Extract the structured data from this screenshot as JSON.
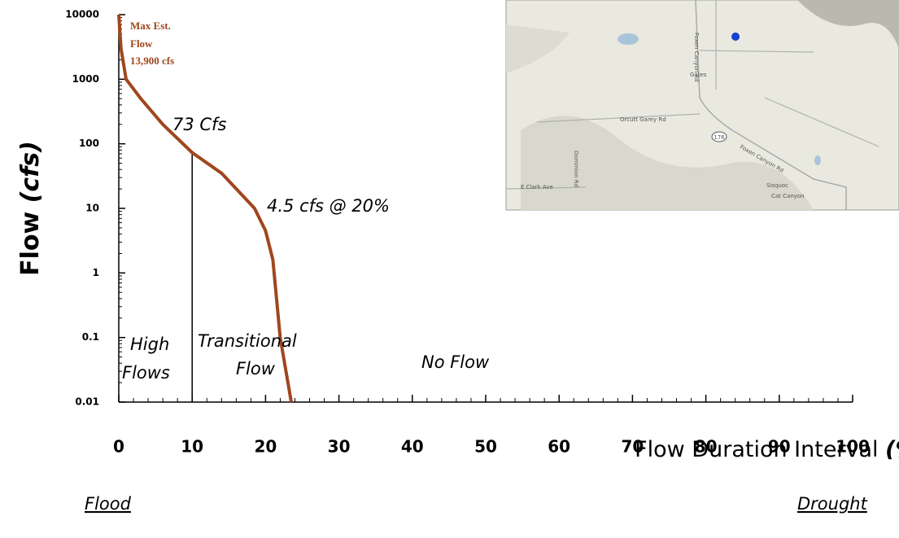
{
  "chart_data": {
    "type": "line",
    "log_y": true,
    "xlabel": "Flow Duration Interval",
    "xlabel_unit": "(%)",
    "ylabel": "Flow",
    "ylabel_unit": "(cfs)",
    "xlim": [
      0,
      100
    ],
    "xticks": [
      0,
      10,
      20,
      30,
      40,
      50,
      60,
      70,
      80,
      90,
      100
    ],
    "ylim": [
      0.01,
      10000
    ],
    "yticks": [
      0.01,
      0.1,
      1,
      10,
      100,
      1000,
      10000
    ],
    "series": [
      {
        "color": "#a0461e",
        "x": [
          0,
          0.3,
          1,
          3,
          6,
          10,
          14,
          18.5,
          20,
          21,
          22,
          23.5
        ],
        "values": [
          10000,
          3000,
          1000,
          500,
          200,
          73,
          35,
          10,
          4.5,
          1.6,
          0.1,
          0.01
        ]
      }
    ],
    "annotations": [
      "Max Est.",
      "Flow",
      "13,900 cfs",
      "73  Cfs",
      "4.5 cfs @ 20%",
      "High",
      "Flows",
      "Transitional",
      "Flow",
      "No Flow",
      "Flood",
      "Drought"
    ]
  },
  "map": {
    "labels": [
      "Gates",
      "Orcutt Garey Rd",
      "176",
      "Foxen Canyon Rd",
      "Sisquoc",
      "Cat Canyon",
      "E Clark Ave",
      "Dominion Rd",
      "Foxen Canyon Rd"
    ]
  }
}
